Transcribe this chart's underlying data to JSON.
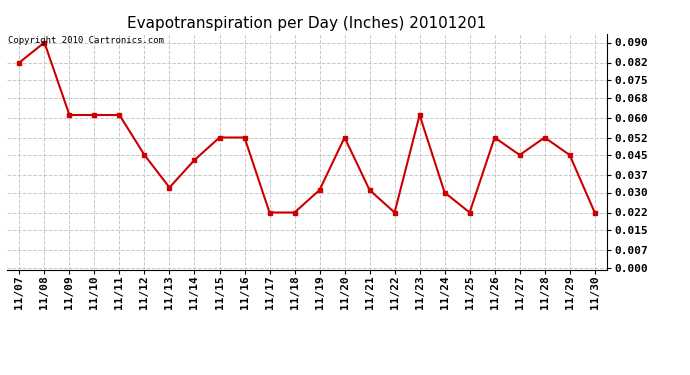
{
  "title": "Evapotranspiration per Day (Inches) 20101201",
  "copyright_text": "Copyright 2010 Cartronics.com",
  "x_labels": [
    "11/07",
    "11/08",
    "11/09",
    "11/10",
    "11/11",
    "11/12",
    "11/13",
    "11/14",
    "11/15",
    "11/16",
    "11/17",
    "11/18",
    "11/19",
    "11/20",
    "11/21",
    "11/22",
    "11/23",
    "11/24",
    "11/25",
    "11/26",
    "11/27",
    "11/28",
    "11/29",
    "11/30"
  ],
  "y_values": [
    0.082,
    0.09,
    0.061,
    0.061,
    0.061,
    0.045,
    0.032,
    0.043,
    0.052,
    0.052,
    0.022,
    0.022,
    0.031,
    0.052,
    0.031,
    0.022,
    0.061,
    0.03,
    0.022,
    0.052,
    0.045,
    0.052,
    0.045,
    0.022
  ],
  "y_ticks": [
    0.0,
    0.007,
    0.015,
    0.022,
    0.03,
    0.037,
    0.045,
    0.052,
    0.06,
    0.068,
    0.075,
    0.082,
    0.09
  ],
  "line_color": "#cc0000",
  "marker_color": "#cc0000",
  "background_color": "#ffffff",
  "grid_color": "#c8c8c8",
  "title_fontsize": 11,
  "tick_fontsize": 8,
  "ylim": [
    -0.001,
    0.0935
  ]
}
